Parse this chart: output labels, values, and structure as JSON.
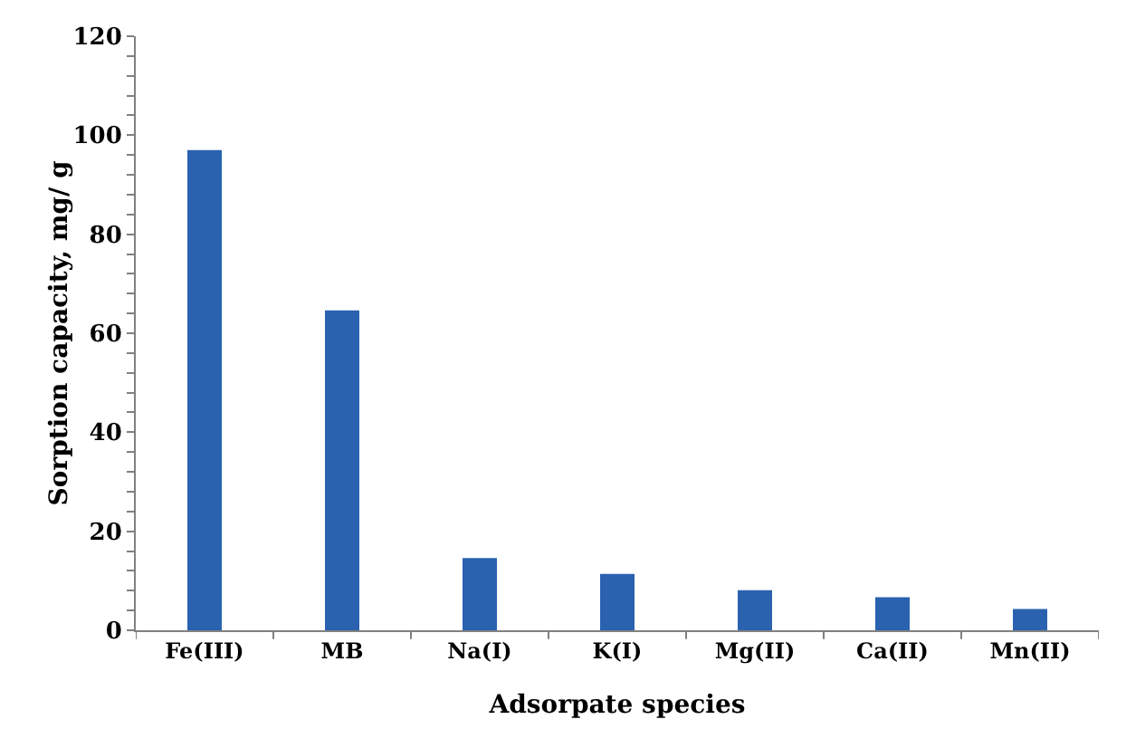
{
  "chart_data": {
    "type": "bar",
    "xlabel": "Adsorpate species",
    "ylabel": "Sorption capacity, mg/ g",
    "categories": [
      "Fe(III)",
      "MB",
      "Na(I)",
      "K(I)",
      "Mg(II)",
      "Ca(II)",
      "Mn(II)"
    ],
    "values": [
      97.0,
      64.6,
      14.6,
      11.4,
      8.1,
      6.7,
      4.3
    ],
    "color": "#2a62b0",
    "ylim": [
      0,
      120
    ],
    "yticks": [
      0,
      {
        "value": 4,
        "label": null
      },
      {
        "value": 8,
        "label": null
      },
      {
        "value": 12,
        "label": null
      },
      {
        "value": 16,
        "label": null
      },
      20,
      {
        "value": 24,
        "label": null
      },
      {
        "value": 28,
        "label": null
      },
      {
        "value": 32,
        "label": null
      },
      {
        "value": 36,
        "label": null
      },
      40,
      {
        "value": 44,
        "label": null
      },
      {
        "value": 48,
        "label": null
      },
      {
        "value": 52,
        "label": null
      },
      {
        "value": 56,
        "label": null
      },
      60,
      {
        "value": 64,
        "label": null
      },
      {
        "value": 68,
        "label": null
      },
      {
        "value": 72,
        "label": null
      },
      {
        "value": 76,
        "label": null
      },
      80,
      {
        "value": 84,
        "label": null
      },
      {
        "value": 88,
        "label": null
      },
      {
        "value": 92,
        "label": null
      },
      {
        "value": 96,
        "label": null
      },
      100,
      {
        "value": 104,
        "label": null
      },
      {
        "value": 108,
        "label": null
      },
      {
        "value": 112,
        "label": null
      },
      {
        "value": 116,
        "label": null
      },
      120
    ],
    "grid": false
  }
}
